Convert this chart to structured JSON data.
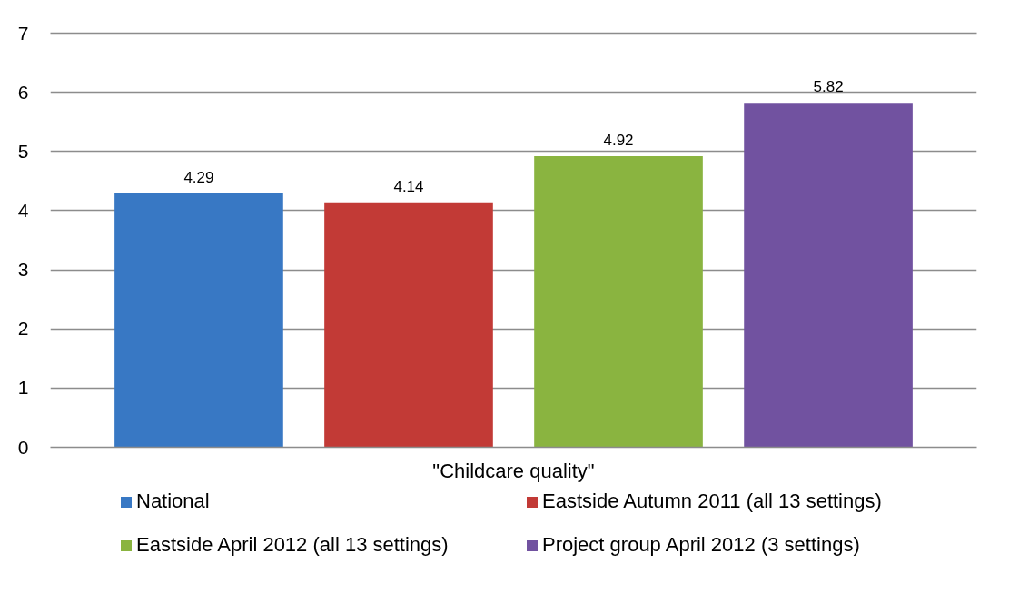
{
  "chart_data": {
    "type": "bar",
    "categories": [
      "\"Childcare quality\""
    ],
    "series": [
      {
        "name": "National",
        "color": "#3878c4",
        "values": [
          4.29
        ]
      },
      {
        "name": "Eastside Autumn 2011 (all 13 settings)",
        "color": "#c23a36",
        "values": [
          4.14
        ]
      },
      {
        "name": "Eastside April 2012 (all 13 settings)",
        "color": "#8ab440",
        "values": [
          4.92
        ]
      },
      {
        "name": "Project group April 2012 (3 settings)",
        "color": "#7152a0",
        "values": [
          5.82
        ]
      }
    ],
    "ylim": [
      0,
      7
    ],
    "yticks": [
      0,
      1,
      2,
      3,
      4,
      5,
      6,
      7
    ],
    "grid": "y",
    "legend": "bottom",
    "data_labels": true
  }
}
